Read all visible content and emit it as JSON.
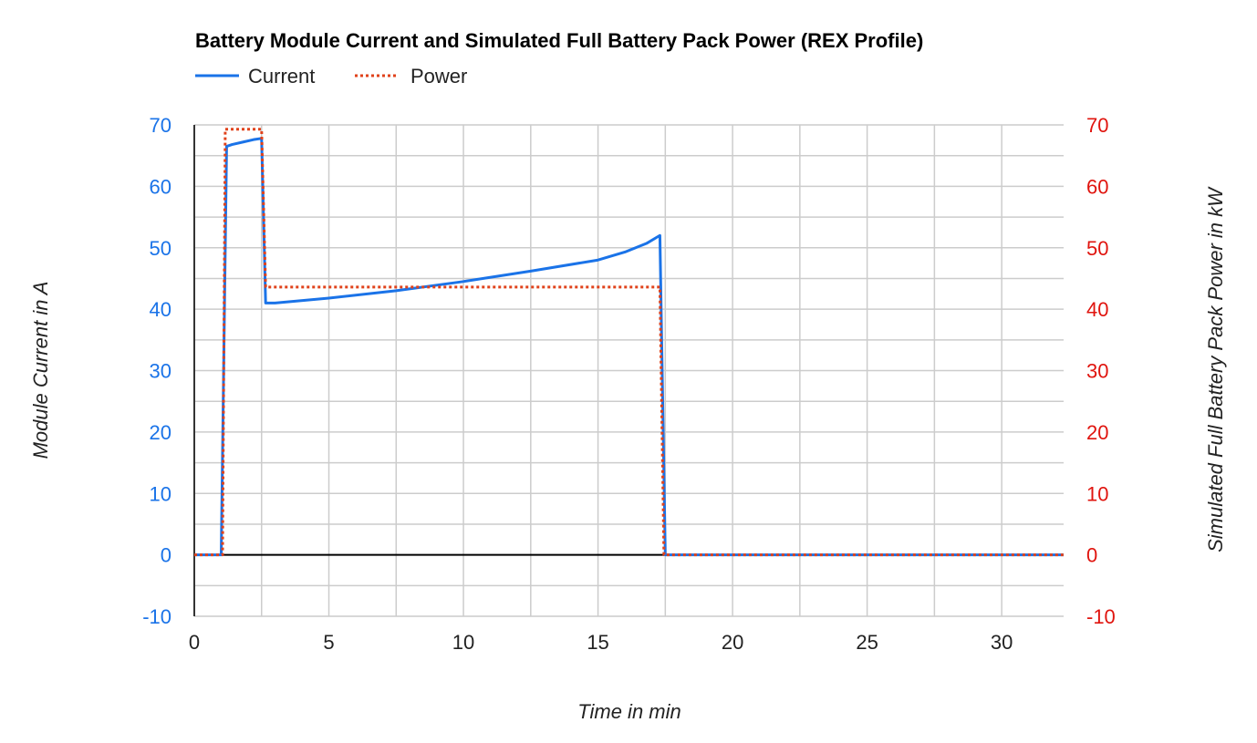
{
  "chart_data": {
    "type": "line",
    "title": "Battery Module Current and Simulated Full Battery Pack Power (REX Profile)",
    "xlabel": "Time in min",
    "ylabel": "Module Current in A",
    "ylabel_right": "Simulated Full Battery Pack Power in kW",
    "xlim": [
      0,
      32.3
    ],
    "ylim": [
      -10,
      70
    ],
    "ylim_right": [
      -10,
      70
    ],
    "x_ticks": [
      "0",
      "5",
      "10",
      "15",
      "20",
      "25",
      "30"
    ],
    "x_tick_values": [
      0,
      5,
      10,
      15,
      20,
      25,
      30
    ],
    "y_ticks": [
      "70",
      "60",
      "50",
      "40",
      "30",
      "20",
      "10",
      "0",
      "-10"
    ],
    "y_tick_values": [
      70,
      60,
      50,
      40,
      30,
      20,
      10,
      0,
      -10
    ],
    "y_ticks_right": [
      "70",
      "60",
      "50",
      "40",
      "30",
      "20",
      "10",
      "0",
      "-10"
    ],
    "grid": true,
    "legend": "top-left",
    "series": [
      {
        "name": "Current",
        "axis": "left",
        "color": "#1a73e8",
        "style": "solid",
        "x": [
          0,
          1.0,
          1.2,
          1.4,
          1.8,
          2.2,
          2.5,
          2.65,
          3.0,
          5,
          7.5,
          10,
          12.5,
          15,
          16,
          16.8,
          17.3,
          17.5,
          18,
          20,
          25,
          30,
          32.3
        ],
        "values": [
          0,
          0,
          66.5,
          66.8,
          67.2,
          67.6,
          67.8,
          41.0,
          41.0,
          41.8,
          43.0,
          44.5,
          46.2,
          48.0,
          49.3,
          50.7,
          52.0,
          0,
          0,
          0,
          0,
          0,
          0
        ]
      },
      {
        "name": "Power",
        "axis": "right",
        "color": "#e0421b",
        "style": "dotted",
        "x": [
          0,
          1.05,
          1.15,
          2.5,
          2.65,
          17.3,
          17.45,
          20,
          25,
          30,
          32.3
        ],
        "values": [
          0,
          0,
          69.3,
          69.3,
          43.6,
          43.6,
          0,
          0,
          0,
          0,
          0
        ]
      }
    ],
    "colors": {
      "left_axis": "#1a73e8",
      "right_axis": "#e0140e",
      "grid": "#cccccc",
      "baseline": "#000000"
    }
  }
}
